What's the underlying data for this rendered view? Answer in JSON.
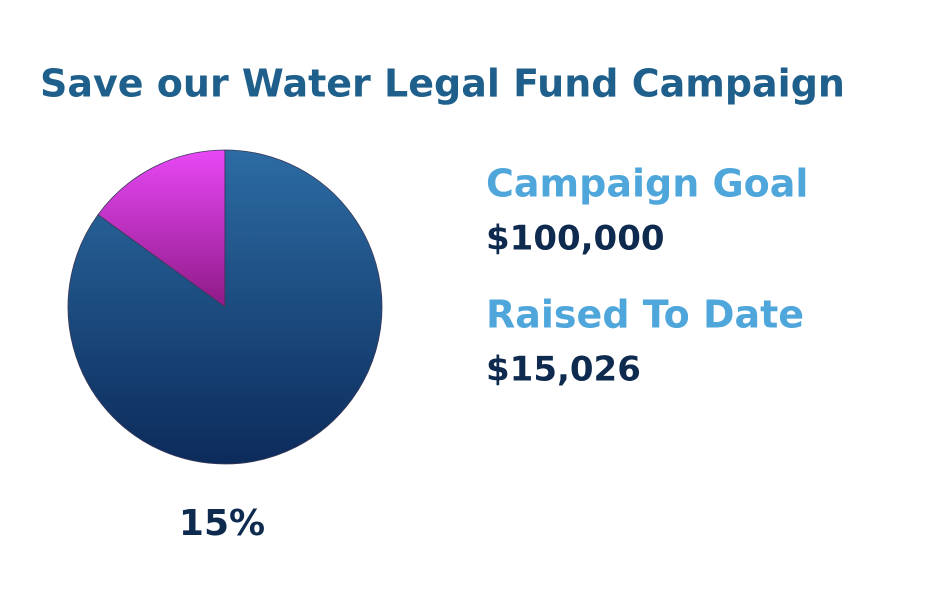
{
  "chart_data": {
    "type": "pie",
    "title": "Save our Water Legal Fund Campaign",
    "categories": [
      null,
      null
    ],
    "values": [
      15,
      85
    ],
    "value_labels": [
      "15%",
      null
    ],
    "colors": [
      "#d63ae0",
      "#1f5a92"
    ],
    "annotations": [
      "Campaign Goal",
      "$100,000",
      "Raised To Date",
      "$15,026"
    ]
  }
}
